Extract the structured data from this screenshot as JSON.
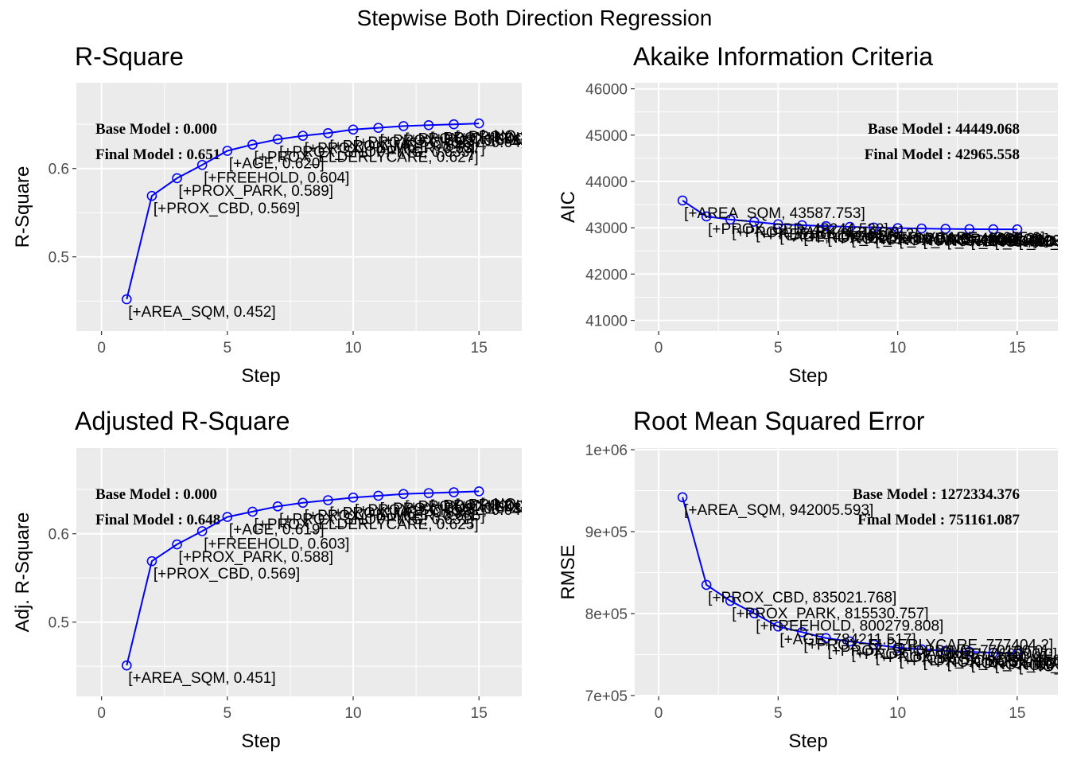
{
  "title": "Stepwise Both Direction Regression",
  "colors": {
    "panel": "#ebebeb",
    "grid": "#ffffff",
    "line": "#0000ff",
    "tick": "#4d4d4d"
  },
  "chart_data": [
    {
      "type": "line",
      "title": "R-Square",
      "xlabel": "Step",
      "ylabel": "R-Square",
      "xlim": [
        -1,
        16.7
      ],
      "ylim": [
        0.416,
        0.697
      ],
      "xticks": [
        0,
        5,
        10,
        15
      ],
      "yticks": [
        0.5,
        0.6
      ],
      "tick_labels": [
        "0.5",
        "0.6"
      ],
      "x": [
        1,
        2,
        3,
        4,
        5,
        6,
        7,
        8,
        9,
        10,
        11,
        12,
        13,
        14,
        15
      ],
      "values": [
        0.452,
        0.569,
        0.589,
        0.604,
        0.62,
        0.627,
        0.633,
        0.637,
        0.64,
        0.644,
        0.646,
        0.648,
        0.649,
        0.65,
        0.651
      ],
      "point_labels": [
        "[+AREA_SQM, 0.452]",
        "[+PROX_CBD, 0.569]",
        "[+PROX_PARK, 0.589]",
        "[+FREEHOLD, 0.604]",
        "[+AGE, 0.620]",
        "[+PROX_ELDERLYCARE, 0.627]",
        "[+PROX_SHOPPING, 0.633]",
        "[+PROX_HAWKER, 0.637]",
        "[+PROX_MRT, 0.640]",
        "[+PROX_SCHOOL, 0.644]",
        "[+PROX_BUS, 0.646]",
        "[+PROX_CHILDCARE, 0.648]",
        "[+PROX_KIN, 0.649]",
        "[+PROX_SPM, 0.650]",
        "[+NO_OF_UNITS, 0.651]"
      ],
      "annotations": [
        "Base Model  : 0.000",
        "Final Model : 0.651"
      ],
      "annotation_align": "left"
    },
    {
      "type": "line",
      "title": "Akaike Information Criteria",
      "xlabel": "Step",
      "ylabel": "AIC",
      "xlim": [
        -1,
        16.7
      ],
      "ylim": [
        40770,
        46130
      ],
      "xticks": [
        0,
        5,
        10,
        15
      ],
      "yticks": [
        41000,
        42000,
        43000,
        44000,
        45000,
        46000
      ],
      "tick_labels": [
        "41000",
        "42000",
        "43000",
        "44000",
        "45000",
        "46000"
      ],
      "x": [
        1,
        2,
        3,
        4,
        5,
        6,
        7,
        8,
        9,
        10,
        11,
        12,
        13,
        14,
        15
      ],
      "values": [
        43587.753,
        43244.522,
        43176.9,
        43131.2,
        43076.5,
        43055.0,
        43035.2,
        43020.1,
        43005.6,
        42992.3,
        42983.8,
        42976.4,
        42971.2,
        42967.9,
        42965.558
      ],
      "point_labels": [
        "[+AREA_SQM, 43587.753]",
        "[+PROX_CBD, 43244.522]",
        "[+PROX_PARK, 43176.9]",
        "[+FREEHOLD, 43131.2]",
        "[+AGE, 43076.5]",
        "[+PROX_ELDERLYCARE, 43055.0]",
        "[+PROX_SHOPPING, 43035.2]",
        "[+PROX_HAWKER, 43020.1]",
        "[+PROX_MRT, 43005.6]",
        "[+PROX_SCHOOL, 42992.3]",
        "[+PROX_BUS, 42983.8]",
        "[+PROX_CHILDCARE, 42976.4]",
        "[+PROX_KIN, 42971.2]",
        "[+PROX_SPM, 42967.9]",
        "[+NO_OF_UNITS, 42965.558]"
      ],
      "annotations": [
        "Base Model  : 44449.068",
        "Final Model : 42965.558"
      ],
      "annotation_align": "right"
    },
    {
      "type": "line",
      "title": "Adjusted R-Square",
      "xlabel": "Step",
      "ylabel": "Adj. R-Square",
      "xlim": [
        -1,
        16.7
      ],
      "ylim": [
        0.416,
        0.697
      ],
      "xticks": [
        0,
        5,
        10,
        15
      ],
      "yticks": [
        0.5,
        0.6
      ],
      "tick_labels": [
        "0.5",
        "0.6"
      ],
      "x": [
        1,
        2,
        3,
        4,
        5,
        6,
        7,
        8,
        9,
        10,
        11,
        12,
        13,
        14,
        15
      ],
      "values": [
        0.451,
        0.569,
        0.588,
        0.603,
        0.619,
        0.625,
        0.631,
        0.635,
        0.638,
        0.641,
        0.643,
        0.645,
        0.646,
        0.647,
        0.648
      ],
      "point_labels": [
        "[+AREA_SQM, 0.451]",
        "[+PROX_CBD, 0.569]",
        "[+PROX_PARK, 0.588]",
        "[+FREEHOLD, 0.603]",
        "[+AGE, 0.619]",
        "[+PROX_ELDERLYCARE, 0.625]",
        "[+PROX_SHOPPING, 0.631]",
        "[+PROX_HAWKER, 0.635]",
        "[+PROX_MRT, 0.638]",
        "[+PROX_SCHOOL, 0.641]",
        "[+PROX_BUS, 0.643]",
        "[+PROX_CHILDCARE, 0.645]",
        "[+PROX_KIN, 0.646]",
        "[+PROX_SPM, 0.647]",
        "[+NO_OF_UNITS, 0.648]"
      ],
      "annotations": [
        "Base Model  : 0.000",
        "Final Model : 0.648"
      ],
      "annotation_align": "left"
    },
    {
      "type": "line",
      "title": "Root Mean Squared Error",
      "xlabel": "Step",
      "ylabel": "RMSE",
      "xlim": [
        -1,
        16.7
      ],
      "ylim": [
        699000,
        1002000
      ],
      "xticks": [
        0,
        5,
        10,
        15
      ],
      "yticks": [
        700000,
        800000,
        900000,
        1000000
      ],
      "tick_labels": [
        "7e+05",
        "8e+05",
        "9e+05",
        "1e+06"
      ],
      "x": [
        1,
        2,
        3,
        4,
        5,
        6,
        7,
        8,
        9,
        10,
        11,
        12,
        13,
        14,
        15
      ],
      "values": [
        942005.593,
        835021.768,
        815530.757,
        800279.808,
        784211.517,
        777404.2,
        770100.0,
        766000.0,
        762300.0,
        758300.0,
        756400.0,
        754600.0,
        753300.0,
        752200.0,
        751161.087
      ],
      "point_labels": [
        "[+AREA_SQM, 942005.593]",
        "[+PROX_CBD, 835021.768]",
        "[+PROX_PARK, 815530.757]",
        "[+FREEHOLD, 800279.808]",
        "[+AGE, 784211.517]",
        "[+PROX_ELDERLYCARE, 777404.2]",
        "[+PROX_SHOPPING, 770100.0]",
        "[+PROX_HAWKER, 766000.0]",
        "[+PROX_MRT, 762300.0]",
        "[+PROX_SCHOOL, 758300.0]",
        "[+PROX_BUS, 756400.0]",
        "[+PROX_CHILDCARE, 754600.0]",
        "[+PROX_KIN, 753300.0]",
        "[+PROX_SPM, 752200.0]",
        "[+NO_OF_UNITS, 751161.087]"
      ],
      "annotations": [
        "Base Model  : 1272334.376",
        "Final Model : 751161.087"
      ],
      "annotation_align": "right"
    }
  ]
}
